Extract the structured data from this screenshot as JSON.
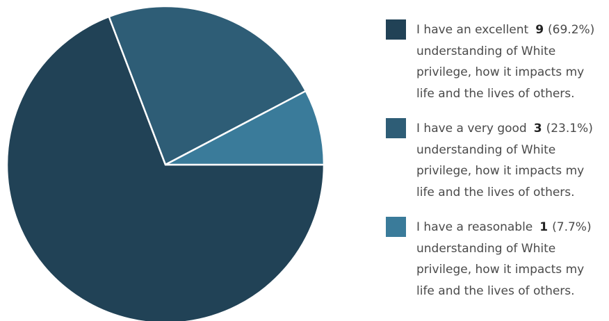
{
  "chart_data": {
    "type": "pie",
    "slices": [
      {
        "label": "I have an excellent understanding of White privilege, how it impacts my life and the lives of others.",
        "label_lead": "I have an excellent",
        "label_rest": "understanding of White privilege, how it impacts my life and the lives of others.",
        "count": "9",
        "percent": "(69.2%)",
        "value": 69.2,
        "color": "#214256"
      },
      {
        "label": "I have a very good understanding of White privilege, how it impacts my life and the lives of others.",
        "label_lead": "I have a very good",
        "label_rest": "understanding of White privilege, how it impacts my life and the lives of others.",
        "count": "3",
        "percent": "(23.1%)",
        "value": 23.1,
        "color": "#2e5d76"
      },
      {
        "label": "I have a reasonable understanding of White privilege, how it impacts my life and the lives of others.",
        "label_lead": "I have a reasonable",
        "label_rest": "understanding of White privilege, how it impacts my life and the lives of others.",
        "count": "1",
        "percent": "(7.7%)",
        "value": 7.7,
        "color": "#3a7b9a"
      }
    ],
    "legend_position": "right"
  }
}
